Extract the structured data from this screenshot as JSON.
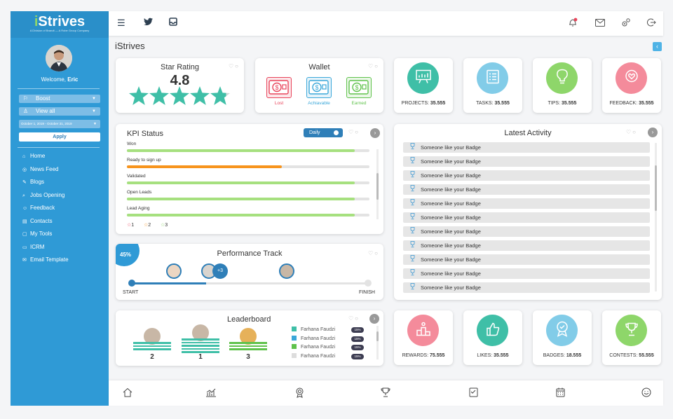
{
  "sidebar": {
    "logo": "Strives",
    "logo_sub": "A Division of Brandt — A Robe Group Company",
    "welcome_prefix": "Welcome, ",
    "welcome_name": "Eric",
    "filters": {
      "first": "Boost",
      "second": "View all",
      "date_range": "October 1, 2019 - October 31, 2019",
      "apply": "Apply"
    },
    "items": [
      {
        "label": "Home",
        "icon": "home-icon"
      },
      {
        "label": "News Feed",
        "icon": "news-icon"
      },
      {
        "label": "Blogs",
        "icon": "blog-icon"
      },
      {
        "label": "Jobs Opening",
        "icon": "search-icon"
      },
      {
        "label": "Feedback",
        "icon": "feedback-icon"
      },
      {
        "label": "Contacts",
        "icon": "contacts-icon"
      },
      {
        "label": "My Tools",
        "icon": "tools-icon"
      },
      {
        "label": "ICRM",
        "icon": "icrm-icon"
      },
      {
        "label": "Email Template",
        "icon": "email-template-icon"
      }
    ]
  },
  "page_title": "iStrives",
  "star_rating": {
    "title": "Star Rating",
    "value": "4.8",
    "rating": 4.8,
    "max": 5
  },
  "wallet": {
    "title": "Wallet",
    "items": [
      {
        "label": "Lost",
        "color": "#e8435a"
      },
      {
        "label": "Achiavable",
        "color": "#3aa7d9"
      },
      {
        "label": "Earned",
        "color": "#5fc24b"
      }
    ]
  },
  "top_stats": [
    {
      "label": "PROJECTS:",
      "value": "35.555",
      "color": "#3fbfa7"
    },
    {
      "label": "TASKS:",
      "value": "35.555",
      "color": "#82cce8"
    },
    {
      "label": "TIPS:",
      "value": "35.555",
      "color": "#8ed66a"
    },
    {
      "label": "FEEDBACK:",
      "value": "35.555",
      "color": "#f48b9b"
    }
  ],
  "kpi": {
    "title": "KPI Status",
    "period": "Daily",
    "rows": [
      {
        "label": "Won",
        "progress": 0.94,
        "color": "#a6e07f"
      },
      {
        "label": "Ready to sign up",
        "progress": 0.64,
        "color": "#f7941d"
      },
      {
        "label": "Validated",
        "progress": 0.94,
        "color": "#a6e07f"
      },
      {
        "label": "Open Leads",
        "progress": 0.94,
        "color": "#a6e07f"
      },
      {
        "label": "Lead Aging",
        "progress": 0.94,
        "color": "#a6e07f"
      }
    ],
    "legend": [
      {
        "label": "1",
        "color": "#e8435a"
      },
      {
        "label": "2",
        "color": "#f7941d"
      },
      {
        "label": "3",
        "color": "#8ed66a"
      }
    ]
  },
  "performance": {
    "title": "Performance Track",
    "percent": "45%",
    "progress": 0.45,
    "start": "START",
    "finish": "FINISH",
    "extra": "+3"
  },
  "activity": {
    "title": "Latest Activity",
    "items": [
      "Someone like your Badge",
      "Someone like your Badge",
      "Someone like your Badge",
      "Someone like your Badge",
      "Someone like your Badge",
      "Someone like your Badge",
      "Someone like your Badge",
      "Someone like your Badge",
      "Someone like your Badge",
      "Someone like your Badge",
      "Someone like your Badge"
    ]
  },
  "leaderboard": {
    "title": "Leaderboard",
    "podium": [
      {
        "rank": "2",
        "color": "#3fbfa7"
      },
      {
        "rank": "1",
        "color": "#3fbfa7"
      },
      {
        "rank": "3",
        "color": "#5fc24b"
      }
    ],
    "rows": [
      {
        "name": "Farhana Faudzi",
        "value": "15%",
        "color": "#3fbfa7"
      },
      {
        "name": "Farhana Faudzi",
        "value": "15%",
        "color": "#3aa7d9"
      },
      {
        "name": "Farhana Faudzi",
        "value": "15%",
        "color": "#5fc24b"
      },
      {
        "name": "Farhana Faudzi",
        "value": "15%",
        "color": "#dddddd"
      }
    ]
  },
  "bottom_stats": [
    {
      "label": "REWARDS:",
      "value": "75.555",
      "color": "#f48b9b"
    },
    {
      "label": "LIKES:",
      "value": "35.555",
      "color": "#3fbfa7"
    },
    {
      "label": "BADGES:",
      "value": "18.555",
      "color": "#82cce8"
    },
    {
      "label": "CONTESTS:",
      "value": "55.555",
      "color": "#8ed66a"
    }
  ],
  "colors": {
    "sidebar": "#2f9ad6",
    "accent": "#3fbfa7",
    "track": "#2f7fb8"
  }
}
